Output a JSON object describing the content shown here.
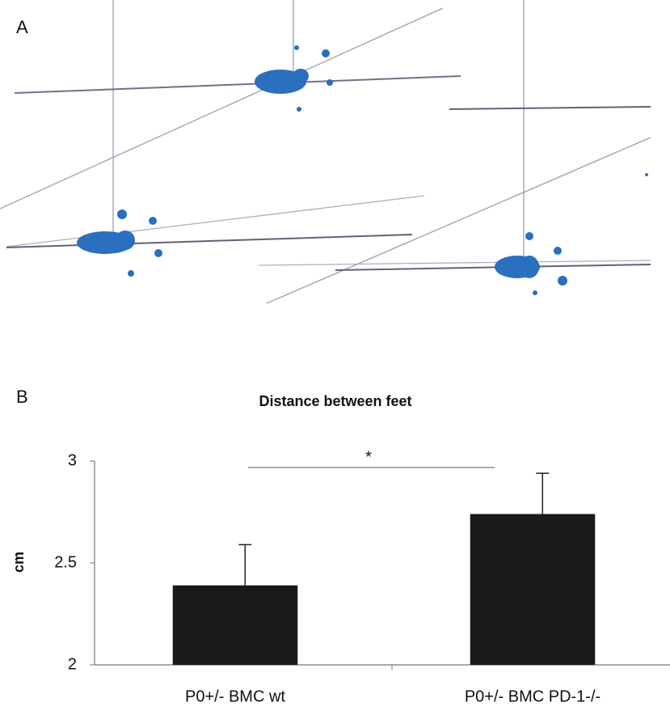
{
  "panel_labels": [
    "A",
    "B"
  ],
  "chart_data": {
    "type": "bar",
    "title": "Distance between feet",
    "y_label": "cm",
    "categories": [
      "P0+/- BMC wt",
      "P0+/- BMC PD-1-/-"
    ],
    "values": [
      2.39,
      2.74
    ],
    "errors": [
      0.2,
      0.2
    ],
    "color": "#1a1a1a",
    "ylim": [
      2,
      3
    ],
    "yticks": [
      2,
      2.5,
      3
    ],
    "grid": false,
    "annotation": "*"
  }
}
